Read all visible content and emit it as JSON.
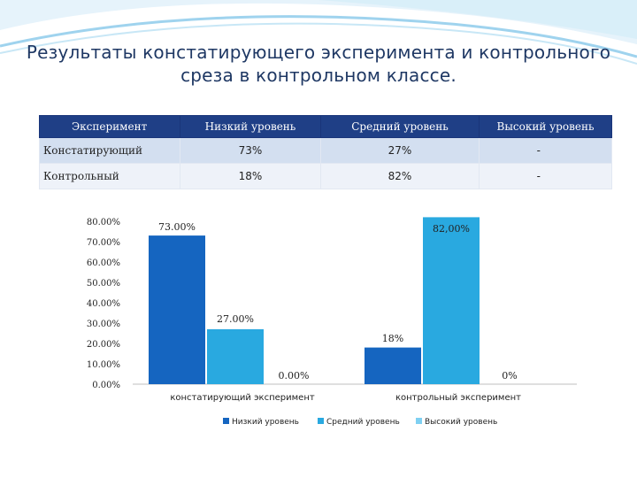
{
  "slide": {
    "title_line1": "Результаты констатирующего эксперимента и контрольного",
    "title_line2": "среза в контрольном классе."
  },
  "table": {
    "headers": [
      "Эксперимент",
      "Низкий уровень",
      "Средний уровень",
      "Высокий уровень"
    ],
    "rows": [
      [
        "Констатирующий",
        "73%",
        "27%",
        "-"
      ],
      [
        "Контрольный",
        "18%",
        "82%",
        "-"
      ]
    ]
  },
  "colors": {
    "header_bg": "#1f3f86",
    "series_low": "#1565c0",
    "series_mid": "#29a9e0",
    "series_high": "#7fd0f2"
  },
  "chart_data": {
    "type": "bar",
    "categories": [
      "констатирующий эксперимент",
      "контрольный эксперимент"
    ],
    "series": [
      {
        "name": "Низкий уровень",
        "values": [
          73,
          18
        ],
        "labels": [
          "73.00%",
          "18%"
        ],
        "color": "#1565c0"
      },
      {
        "name": "Средний уровень",
        "values": [
          27,
          82
        ],
        "labels": [
          "27.00%",
          "82,00%"
        ],
        "color": "#29a9e0"
      },
      {
        "name": "Высокий уровень",
        "values": [
          0,
          0
        ],
        "labels": [
          "0.00%",
          "0%"
        ],
        "color": "#7fd0f2"
      }
    ],
    "yticks": [
      "0.00%",
      "10.00%",
      "20.00%",
      "30.00%",
      "40.00%",
      "50.00%",
      "60.00%",
      "70.00%",
      "80.00%"
    ],
    "ylim": [
      0,
      80
    ],
    "grid": false,
    "legend": "bottom"
  }
}
